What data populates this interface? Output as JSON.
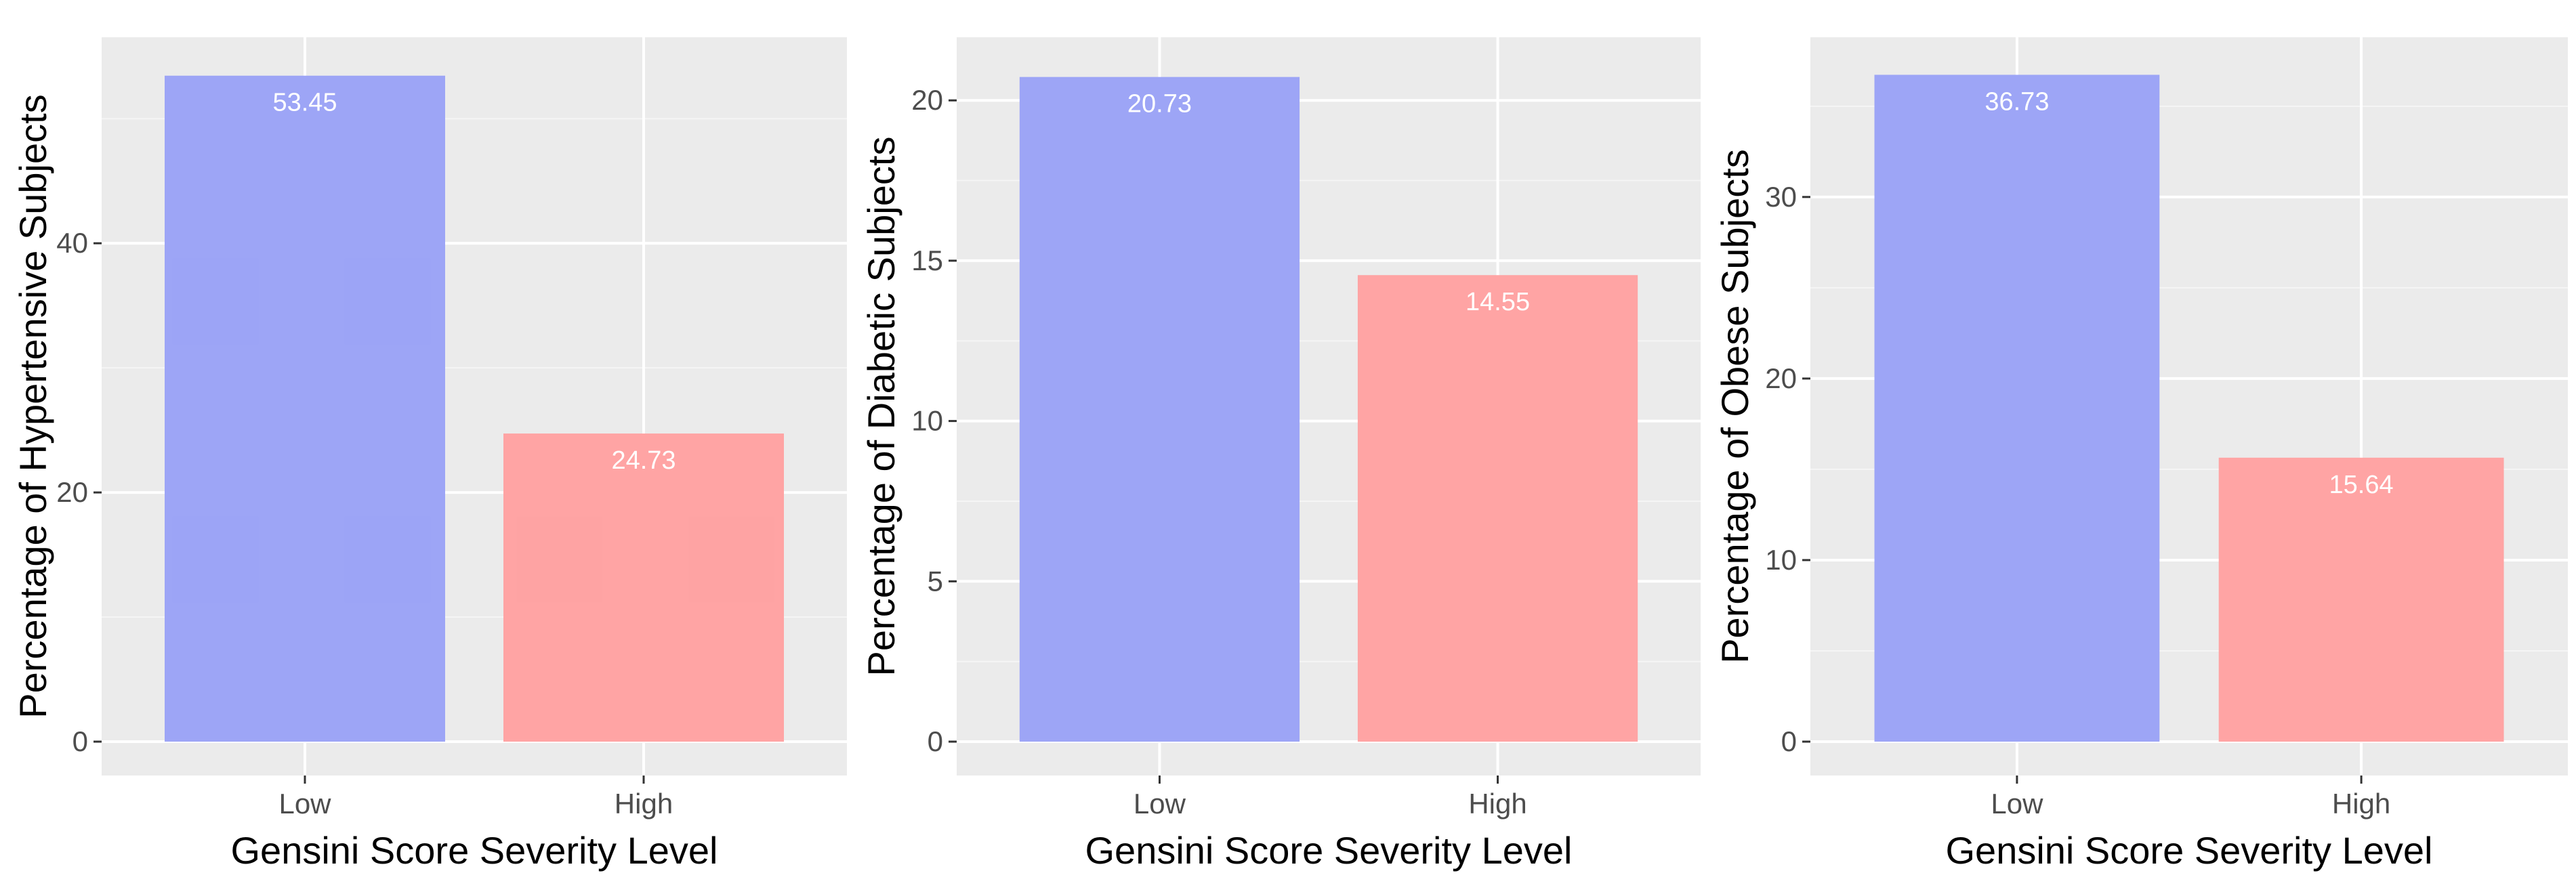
{
  "chart_data": [
    {
      "type": "bar",
      "categories": [
        "Low",
        "High"
      ],
      "values": [
        53.45,
        24.73
      ],
      "labels": [
        "53.45",
        "24.73"
      ],
      "colors": [
        "#9aa2f6",
        "#ffa1a1"
      ],
      "title": "",
      "xlabel": "Gensini Score Severity Level",
      "ylabel": "Percentage of Hypertensive Subjects",
      "ylim": [
        0,
        56.1
      ],
      "yticks": [
        0,
        20,
        40
      ],
      "grid": true
    },
    {
      "type": "bar",
      "categories": [
        "Low",
        "High"
      ],
      "values": [
        20.73,
        14.55
      ],
      "labels": [
        "20.73",
        "14.55"
      ],
      "colors": [
        "#9aa2f6",
        "#ffa1a1"
      ],
      "title": "",
      "xlabel": "Gensini Score Severity Level",
      "ylabel": "Percentage of Diabetic Subjects",
      "ylim": [
        0,
        21.8
      ],
      "yticks": [
        0,
        5,
        10,
        15,
        20
      ],
      "grid": true
    },
    {
      "type": "bar",
      "categories": [
        "Low",
        "High"
      ],
      "values": [
        36.73,
        15.64
      ],
      "labels": [
        "36.73",
        "15.64"
      ],
      "colors": [
        "#9aa2f6",
        "#ffa1a1"
      ],
      "title": "",
      "xlabel": "Gensini Score Severity Level",
      "ylabel": "Percentage of Obese Subjects",
      "ylim": [
        0,
        38.5
      ],
      "yticks": [
        0,
        10,
        20,
        30
      ],
      "grid": true
    }
  ]
}
